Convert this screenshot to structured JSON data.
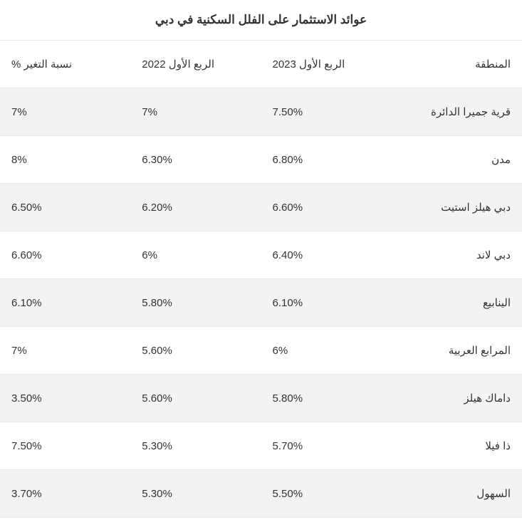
{
  "table": {
    "type": "table",
    "title": "عوائد الاستثمار على الفلل السكنية في دبي",
    "background_color": "#ffffff",
    "row_alt_background": "#f3f3f3",
    "border_color": "#e9e9e9",
    "text_color": "#333333",
    "title_fontsize": 17,
    "cell_fontsize": 15,
    "columns": [
      {
        "key": "region",
        "label": "المنطقة",
        "align": "right"
      },
      {
        "key": "q1_2023",
        "label": "الربع الأول 2023",
        "align": "left"
      },
      {
        "key": "q1_2022",
        "label": "الربع الأول 2022",
        "align": "left"
      },
      {
        "key": "change",
        "label": "نسبة التغير %",
        "align": "left"
      }
    ],
    "rows": [
      {
        "region": "قرية جميرا الدائرة",
        "q1_2023": "7.50%",
        "q1_2022": "7%",
        "change": "7%"
      },
      {
        "region": "مدن",
        "q1_2023": "6.80%",
        "q1_2022": "6.30%",
        "change": "8%"
      },
      {
        "region": "دبي هيلز استيت",
        "q1_2023": "6.60%",
        "q1_2022": "6.20%",
        "change": "6.50%"
      },
      {
        "region": "دبي لاند",
        "q1_2023": "6.40%",
        "q1_2022": "6%",
        "change": "6.60%"
      },
      {
        "region": "الينابيع",
        "q1_2023": "6.10%",
        "q1_2022": "5.80%",
        "change": "6.10%"
      },
      {
        "region": "المرابع العربية",
        "q1_2023": "6%",
        "q1_2022": "5.60%",
        "change": "7%"
      },
      {
        "region": "داماك هيلز",
        "q1_2023": "5.80%",
        "q1_2022": "5.60%",
        "change": "3.50%"
      },
      {
        "region": "ذا فيلا",
        "q1_2023": "5.70%",
        "q1_2022": "5.30%",
        "change": "7.50%"
      },
      {
        "region": "السهول",
        "q1_2023": "5.50%",
        "q1_2022": "5.30%",
        "change": "3.70%"
      }
    ]
  }
}
